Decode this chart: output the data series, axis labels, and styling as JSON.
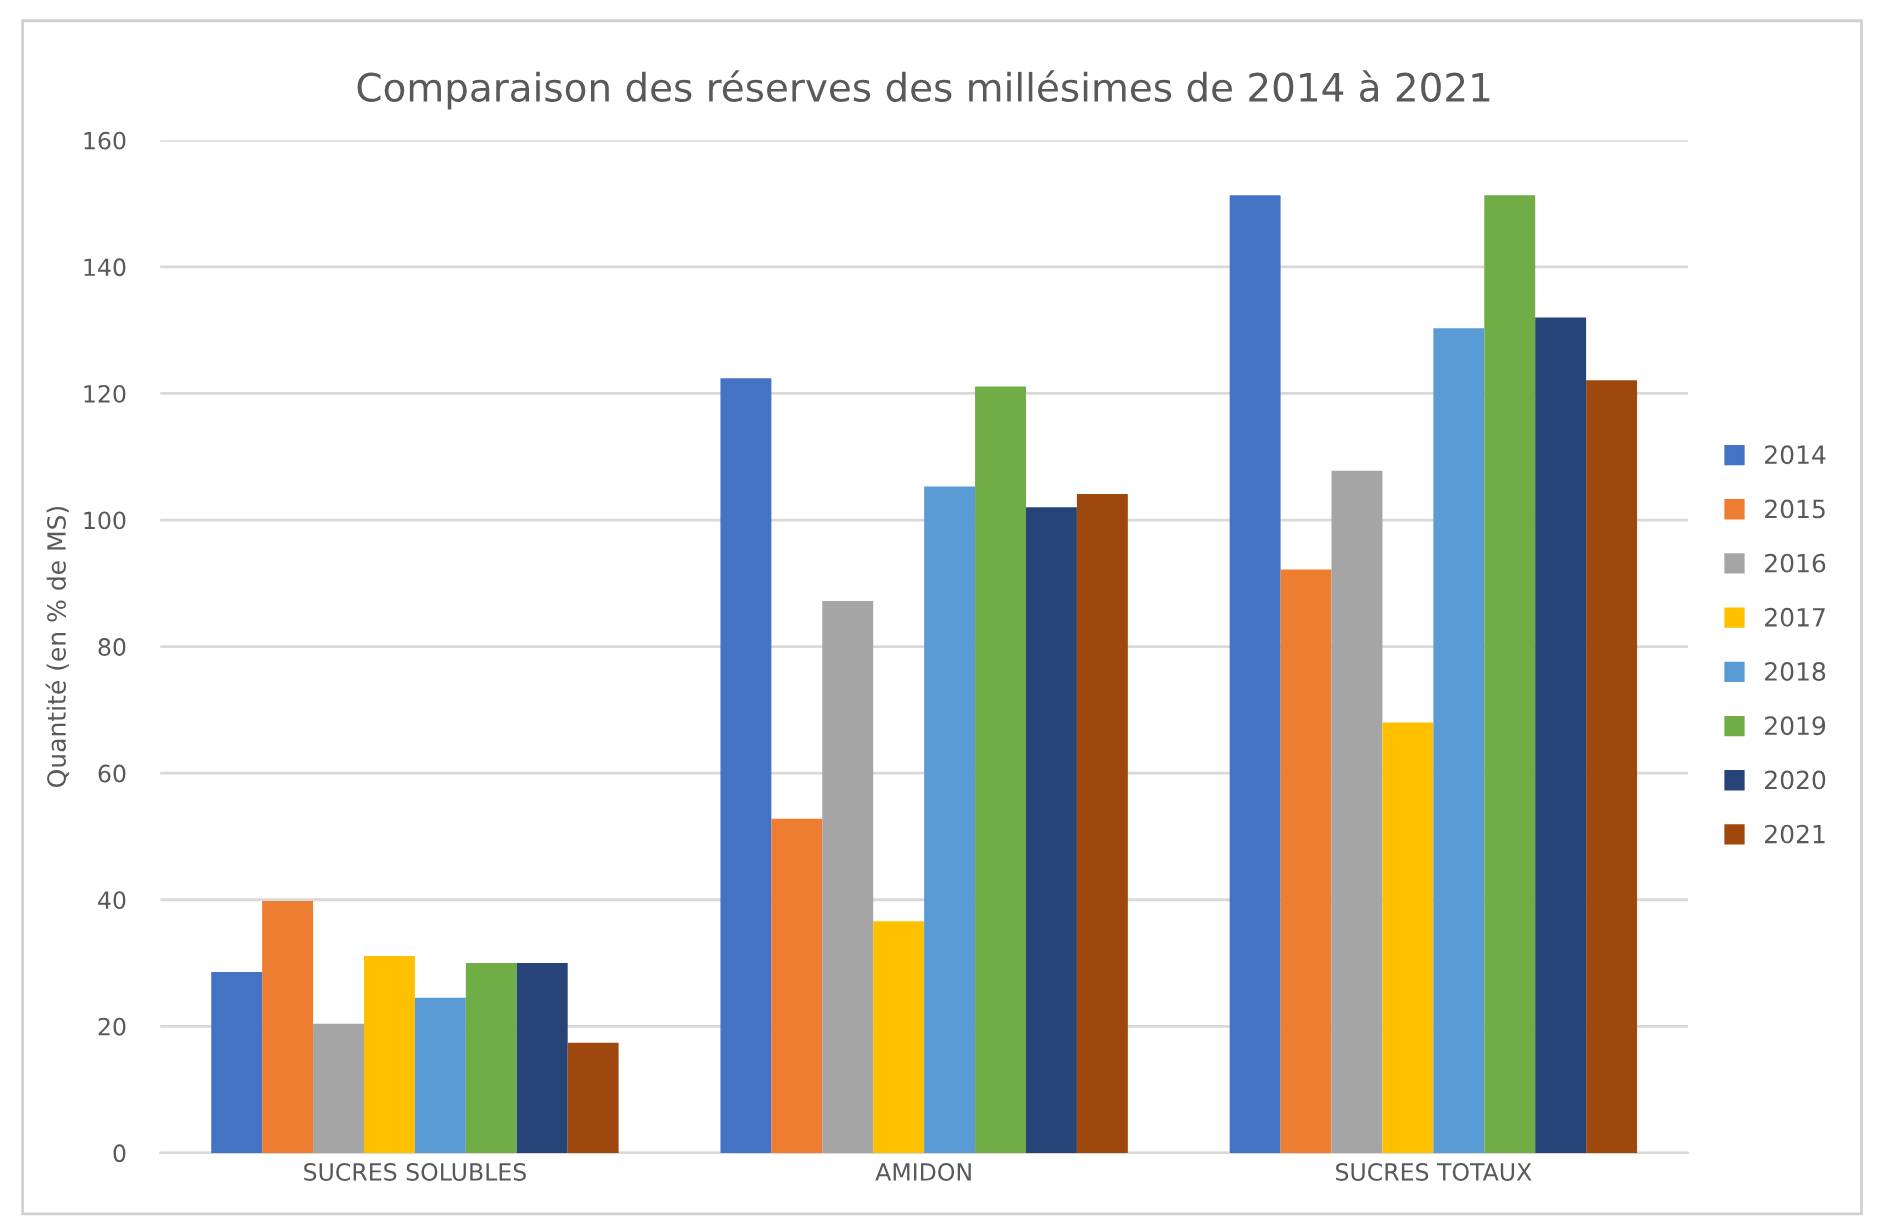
{
  "chart_data": {
    "type": "bar",
    "title": "Comparaison des réserves des millésimes de 2014 à 2021",
    "ylabel": "Quantité (en % de MS)",
    "categories": [
      "SUCRES SOLUBLES",
      "AMIDON",
      "SUCRES TOTAUX"
    ],
    "series": [
      {
        "name": "2014",
        "color": "#4472c4",
        "values": [
          28.6,
          122.4,
          151.3
        ]
      },
      {
        "name": "2015",
        "color": "#ed7d31",
        "values": [
          39.8,
          52.8,
          92.2
        ]
      },
      {
        "name": "2016",
        "color": "#a5a5a5",
        "values": [
          20.4,
          87.2,
          107.8
        ]
      },
      {
        "name": "2017",
        "color": "#ffc000",
        "values": [
          31.1,
          36.6,
          68.0
        ]
      },
      {
        "name": "2018",
        "color": "#5b9bd5",
        "values": [
          24.5,
          105.3,
          130.3
        ]
      },
      {
        "name": "2019",
        "color": "#70ad47",
        "values": [
          30.0,
          121.1,
          151.3
        ]
      },
      {
        "name": "2020",
        "color": "#264478",
        "values": [
          30.0,
          102.0,
          132.0
        ]
      },
      {
        "name": "2021",
        "color": "#9e480e",
        "values": [
          17.4,
          104.1,
          122.1
        ]
      }
    ],
    "ylim": [
      0,
      160
    ],
    "yticks": [
      0,
      20,
      40,
      60,
      80,
      100,
      120,
      140,
      160
    ],
    "grid": "y",
    "legend": "right"
  }
}
